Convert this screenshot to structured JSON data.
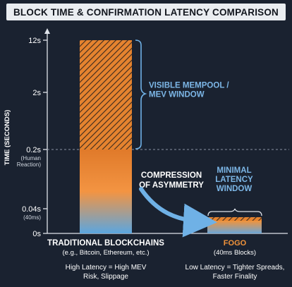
{
  "chart_data": {
    "type": "bar",
    "title": "BLOCK TIME & CONFIRMATION LATENCY COMPARISON",
    "ylabel": "TIME (SECONDS)",
    "y_scale": "piecewise-log",
    "ylim": [
      0,
      12
    ],
    "y_ticks": [
      {
        "value": 12,
        "label": "12s",
        "sublabel": ""
      },
      {
        "value": 2,
        "label": "2s",
        "sublabel": ""
      },
      {
        "value": 0.2,
        "label": "0.2s",
        "sublabel": "(Human\nReaction)"
      },
      {
        "value": 0.04,
        "label": "0.04s",
        "sublabel": "(40ms)"
      },
      {
        "value": 0,
        "label": "0s",
        "sublabel": ""
      }
    ],
    "threshold_line": {
      "value": 0.2,
      "style": "dashed"
    },
    "categories": [
      {
        "name": "TRADITIONAL BLOCKCHAINS",
        "subname": "(e.g., Bitcoin, Ethereum, etc.)",
        "note": "High Latency = High MEV\nRisk, Slippage",
        "value": 12,
        "color_top": "#f2933a",
        "color_bottom": "#5aa3dd"
      },
      {
        "name": "FOGO",
        "subname": "(40ms Blocks)",
        "note": "Low Latency = Tighter Spreads,\nFaster Finality",
        "value": 0.04,
        "color_top": "#f2933a",
        "color_bottom": "#5aa3dd"
      }
    ],
    "annotations": [
      {
        "id": "mempool",
        "text": "VISIBLE MEMPOOL /\nMEV WINDOW"
      },
      {
        "id": "compression",
        "text": "COMPRESSION\nOF ASYMMETRY"
      },
      {
        "id": "minimal",
        "text": "MINIMAL\nLATENCY\nWINDOW"
      }
    ]
  }
}
